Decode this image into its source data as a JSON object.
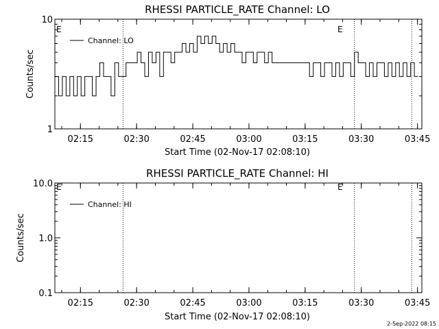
{
  "chart_data": [
    {
      "type": "line",
      "title": "RHESSI PARTICLE_RATE Channel: LO",
      "xlabel": "Start Time (02-Nov-17 02:08:10)",
      "ylabel": "Counts/sec",
      "yscale": "log",
      "ylim": [
        1,
        10
      ],
      "ytick_values": [
        1,
        10
      ],
      "ytick_labels": [
        "1",
        "10"
      ],
      "xlim_minutes": [
        0,
        98
      ],
      "xtick_minutes": [
        6.83,
        21.83,
        36.83,
        51.83,
        66.83,
        81.83,
        96.83
      ],
      "xtick_labels": [
        "02:15",
        "02:30",
        "02:45",
        "03:00",
        "03:15",
        "03:30",
        "03:45"
      ],
      "markers": [
        {
          "minute": 18.2,
          "label": "E"
        },
        {
          "minute": 80.0,
          "label": ""
        },
        {
          "minute": 95.3,
          "label": ""
        }
      ],
      "edge_label": "E",
      "edge_label_right": "E",
      "legend": "Channel: LO",
      "series": [
        {
          "name": "Channel: LO",
          "x_minutes": [
            0,
            1,
            2,
            3,
            4,
            5,
            6,
            7,
            8,
            9,
            10,
            11,
            12,
            13,
            14,
            15,
            16,
            17,
            18,
            19,
            20,
            21,
            22,
            23,
            24,
            25,
            26,
            27,
            28,
            29,
            30,
            31,
            32,
            33,
            34,
            35,
            36,
            37,
            38,
            39,
            40,
            41,
            42,
            43,
            44,
            45,
            46,
            47,
            48,
            49,
            50,
            51,
            52,
            53,
            54,
            55,
            56,
            57,
            58,
            59,
            60,
            61,
            62,
            63,
            64,
            65,
            66,
            67,
            68,
            69,
            70,
            71,
            72,
            73,
            74,
            75,
            76,
            77,
            78,
            79,
            80,
            81,
            82,
            83,
            84,
            85,
            86,
            87,
            88,
            89,
            90,
            91,
            92,
            93,
            94,
            95,
            96
          ],
          "values": [
            3,
            2,
            3,
            2,
            3,
            2,
            3,
            2,
            3,
            3,
            2,
            3,
            4,
            3,
            3,
            2,
            4,
            3,
            3,
            4,
            4,
            4,
            5,
            4,
            3,
            5,
            4,
            5,
            3,
            5,
            5,
            4,
            5,
            5,
            6,
            5,
            6,
            5,
            7,
            6,
            7,
            6,
            7,
            6,
            5,
            6,
            5,
            6,
            5,
            5,
            4,
            5,
            5,
            4,
            5,
            5,
            4,
            5,
            4,
            4,
            4,
            4,
            4,
            4,
            4,
            4,
            4,
            4,
            3,
            4,
            4,
            3,
            4,
            4,
            3,
            4,
            3,
            4,
            4,
            3,
            5,
            4,
            4,
            3,
            4,
            3,
            4,
            4,
            3,
            4,
            3,
            4,
            3,
            4,
            3,
            4,
            3
          ]
        }
      ]
    },
    {
      "type": "line",
      "title": "RHESSI PARTICLE_RATE Channel: HI",
      "xlabel": "Start Time (02-Nov-17 02:08:10)",
      "ylabel": "Counts/sec",
      "yscale": "log",
      "ylim": [
        0.1,
        10.0
      ],
      "ytick_values": [
        0.1,
        1.0,
        10.0
      ],
      "ytick_labels": [
        "0.1",
        "1.0",
        "10.0"
      ],
      "xlim_minutes": [
        0,
        98
      ],
      "xtick_minutes": [
        6.83,
        21.83,
        36.83,
        51.83,
        66.83,
        81.83,
        96.83
      ],
      "xtick_labels": [
        "02:15",
        "02:30",
        "02:45",
        "03:00",
        "03:15",
        "03:30",
        "03:45"
      ],
      "markers": [
        {
          "minute": 18.2,
          "label": ""
        },
        {
          "minute": 80.0,
          "label": ""
        },
        {
          "minute": 95.3,
          "label": ""
        }
      ],
      "edge_label": "E",
      "edge_label_right": "E",
      "legend": "Channel: HI",
      "series": [
        {
          "name": "Channel: HI",
          "x_minutes": [],
          "values": []
        }
      ]
    }
  ],
  "footer_date": "2-Sep-2022 08:15"
}
